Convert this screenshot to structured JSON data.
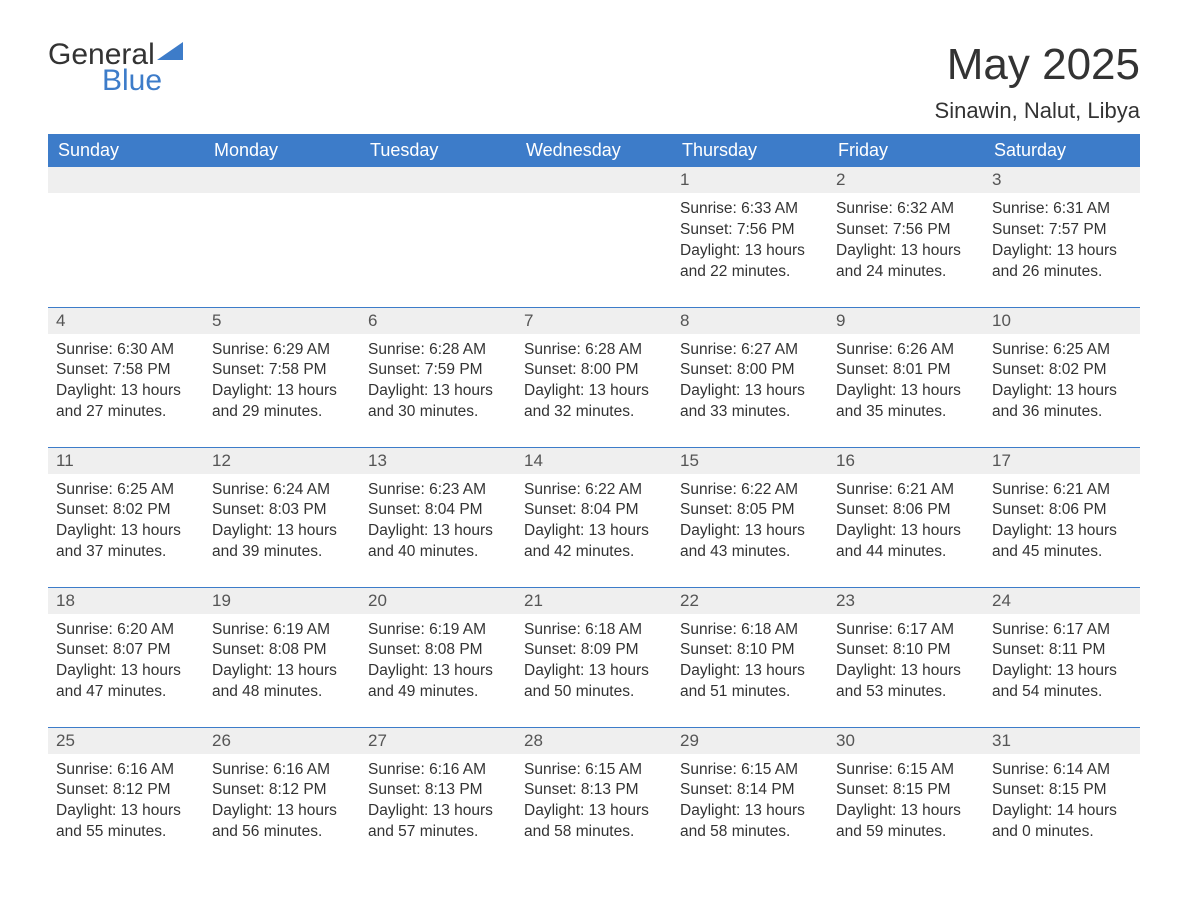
{
  "logo": {
    "word1": "General",
    "word2": "Blue"
  },
  "title": "May 2025",
  "location": "Sinawin, Nalut, Libya",
  "colors": {
    "header_bg": "#3d7cc9",
    "header_text": "#ffffff",
    "daynum_bg": "#efefef",
    "body_text": "#333333",
    "background": "#ffffff",
    "logo_blue": "#3d7cc9"
  },
  "day_labels": [
    "Sunday",
    "Monday",
    "Tuesday",
    "Wednesday",
    "Thursday",
    "Friday",
    "Saturday"
  ],
  "weeks": [
    [
      null,
      null,
      null,
      null,
      {
        "n": "1",
        "sr": "6:33 AM",
        "ss": "7:56 PM",
        "dl": "13 hours and 22 minutes."
      },
      {
        "n": "2",
        "sr": "6:32 AM",
        "ss": "7:56 PM",
        "dl": "13 hours and 24 minutes."
      },
      {
        "n": "3",
        "sr": "6:31 AM",
        "ss": "7:57 PM",
        "dl": "13 hours and 26 minutes."
      }
    ],
    [
      {
        "n": "4",
        "sr": "6:30 AM",
        "ss": "7:58 PM",
        "dl": "13 hours and 27 minutes."
      },
      {
        "n": "5",
        "sr": "6:29 AM",
        "ss": "7:58 PM",
        "dl": "13 hours and 29 minutes."
      },
      {
        "n": "6",
        "sr": "6:28 AM",
        "ss": "7:59 PM",
        "dl": "13 hours and 30 minutes."
      },
      {
        "n": "7",
        "sr": "6:28 AM",
        "ss": "8:00 PM",
        "dl": "13 hours and 32 minutes."
      },
      {
        "n": "8",
        "sr": "6:27 AM",
        "ss": "8:00 PM",
        "dl": "13 hours and 33 minutes."
      },
      {
        "n": "9",
        "sr": "6:26 AM",
        "ss": "8:01 PM",
        "dl": "13 hours and 35 minutes."
      },
      {
        "n": "10",
        "sr": "6:25 AM",
        "ss": "8:02 PM",
        "dl": "13 hours and 36 minutes."
      }
    ],
    [
      {
        "n": "11",
        "sr": "6:25 AM",
        "ss": "8:02 PM",
        "dl": "13 hours and 37 minutes."
      },
      {
        "n": "12",
        "sr": "6:24 AM",
        "ss": "8:03 PM",
        "dl": "13 hours and 39 minutes."
      },
      {
        "n": "13",
        "sr": "6:23 AM",
        "ss": "8:04 PM",
        "dl": "13 hours and 40 minutes."
      },
      {
        "n": "14",
        "sr": "6:22 AM",
        "ss": "8:04 PM",
        "dl": "13 hours and 42 minutes."
      },
      {
        "n": "15",
        "sr": "6:22 AM",
        "ss": "8:05 PM",
        "dl": "13 hours and 43 minutes."
      },
      {
        "n": "16",
        "sr": "6:21 AM",
        "ss": "8:06 PM",
        "dl": "13 hours and 44 minutes."
      },
      {
        "n": "17",
        "sr": "6:21 AM",
        "ss": "8:06 PM",
        "dl": "13 hours and 45 minutes."
      }
    ],
    [
      {
        "n": "18",
        "sr": "6:20 AM",
        "ss": "8:07 PM",
        "dl": "13 hours and 47 minutes."
      },
      {
        "n": "19",
        "sr": "6:19 AM",
        "ss": "8:08 PM",
        "dl": "13 hours and 48 minutes."
      },
      {
        "n": "20",
        "sr": "6:19 AM",
        "ss": "8:08 PM",
        "dl": "13 hours and 49 minutes."
      },
      {
        "n": "21",
        "sr": "6:18 AM",
        "ss": "8:09 PM",
        "dl": "13 hours and 50 minutes."
      },
      {
        "n": "22",
        "sr": "6:18 AM",
        "ss": "8:10 PM",
        "dl": "13 hours and 51 minutes."
      },
      {
        "n": "23",
        "sr": "6:17 AM",
        "ss": "8:10 PM",
        "dl": "13 hours and 53 minutes."
      },
      {
        "n": "24",
        "sr": "6:17 AM",
        "ss": "8:11 PM",
        "dl": "13 hours and 54 minutes."
      }
    ],
    [
      {
        "n": "25",
        "sr": "6:16 AM",
        "ss": "8:12 PM",
        "dl": "13 hours and 55 minutes."
      },
      {
        "n": "26",
        "sr": "6:16 AM",
        "ss": "8:12 PM",
        "dl": "13 hours and 56 minutes."
      },
      {
        "n": "27",
        "sr": "6:16 AM",
        "ss": "8:13 PM",
        "dl": "13 hours and 57 minutes."
      },
      {
        "n": "28",
        "sr": "6:15 AM",
        "ss": "8:13 PM",
        "dl": "13 hours and 58 minutes."
      },
      {
        "n": "29",
        "sr": "6:15 AM",
        "ss": "8:14 PM",
        "dl": "13 hours and 58 minutes."
      },
      {
        "n": "30",
        "sr": "6:15 AM",
        "ss": "8:15 PM",
        "dl": "13 hours and 59 minutes."
      },
      {
        "n": "31",
        "sr": "6:14 AM",
        "ss": "8:15 PM",
        "dl": "14 hours and 0 minutes."
      }
    ]
  ],
  "labels": {
    "sunrise": "Sunrise: ",
    "sunset": "Sunset: ",
    "daylight": "Daylight: "
  }
}
